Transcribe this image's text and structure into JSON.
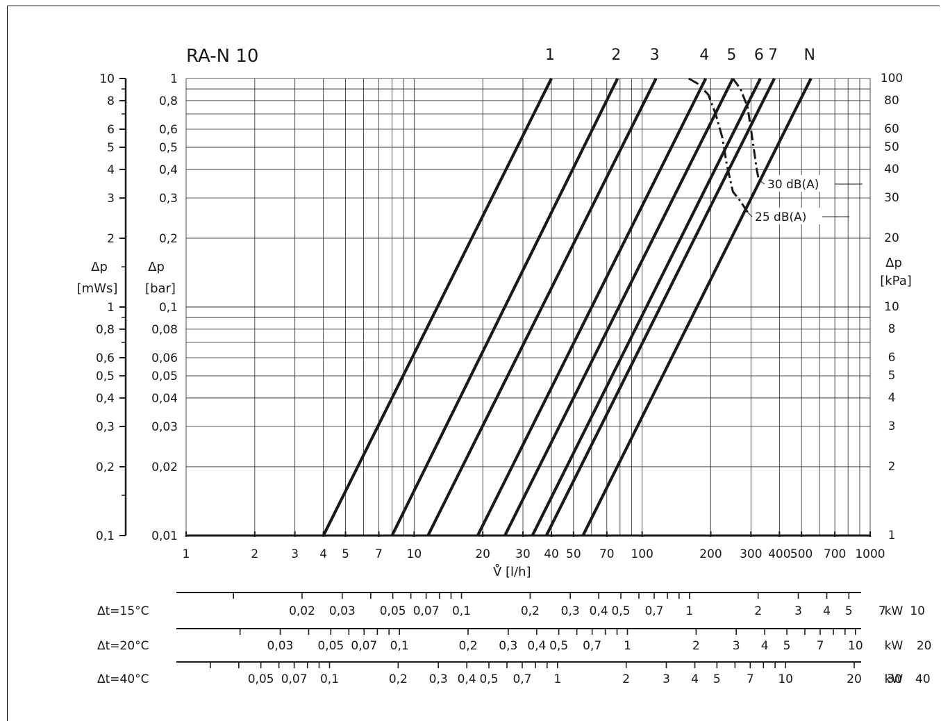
{
  "chart_data": {
    "type": "line",
    "title": "RA-N 10",
    "x_scale": "log",
    "y_scale": "log",
    "xlim": [
      1,
      1000
    ],
    "ylim": [
      0.01,
      1
    ],
    "xlabel": "V̊  [l/h]",
    "x_ticks": [
      1,
      2,
      3,
      4,
      5,
      7,
      10,
      20,
      30,
      40,
      50,
      70,
      100,
      200,
      300,
      400,
      500,
      700,
      1000
    ],
    "x_tick_labels": [
      "1",
      "2",
      "3",
      "4",
      "5",
      "7",
      "10",
      "20",
      "30",
      "40",
      "50",
      "70",
      "100",
      "200",
      "300",
      "400",
      "500",
      "700",
      "1000"
    ],
    "y_axes": {
      "mws": {
        "label_top": "Δp",
        "label_bottom": "[mWs]",
        "ticks": [
          10,
          8,
          6,
          5,
          4,
          3,
          2,
          1,
          0.8,
          0.6,
          0.5,
          0.4,
          0.3,
          0.2,
          0.1
        ],
        "tick_labels": [
          "10",
          "8",
          "6",
          "5",
          "4",
          "3",
          "2",
          "1",
          "0,8",
          "0,6",
          "0,5",
          "0,4",
          "0,3",
          "0,2",
          "0,1"
        ]
      },
      "bar": {
        "label_top": "Δp",
        "label_bottom": "[bar]",
        "ticks": [
          1,
          0.8,
          0.6,
          0.5,
          0.4,
          0.3,
          0.2,
          0.1,
          0.08,
          0.06,
          0.05,
          0.04,
          0.03,
          0.02,
          0.01
        ],
        "tick_labels": [
          "1",
          "0,8",
          "0,6",
          "0,5",
          "0,4",
          "0,3",
          "0,2",
          "0,1",
          "0,08",
          "0,06",
          "0,05",
          "0,04",
          "0,03",
          "0,02",
          "0,01"
        ]
      },
      "kpa": {
        "label_top": "Δp",
        "label_bottom": "[kPa]",
        "ticks": [
          100,
          80,
          60,
          50,
          40,
          30,
          20,
          10,
          8,
          6,
          5,
          4,
          3,
          2,
          1
        ],
        "tick_labels": [
          "100",
          "80",
          "60",
          "50",
          "40",
          "30",
          "20",
          "10",
          "8",
          "6",
          "5",
          "4",
          "3",
          "2",
          "1"
        ]
      }
    },
    "series": [
      {
        "name": "1",
        "x": [
          4,
          40
        ],
        "y": [
          0.01,
          1
        ]
      },
      {
        "name": "2",
        "x": [
          8,
          78
        ],
        "y": [
          0.01,
          1
        ]
      },
      {
        "name": "3",
        "x": [
          11.5,
          115
        ],
        "y": [
          0.01,
          1
        ]
      },
      {
        "name": "4",
        "x": [
          19,
          190
        ],
        "y": [
          0.01,
          1
        ]
      },
      {
        "name": "5",
        "x": [
          25,
          250
        ],
        "y": [
          0.01,
          1
        ]
      },
      {
        "name": "6",
        "x": [
          33,
          330
        ],
        "y": [
          0.01,
          1
        ]
      },
      {
        "name": "7",
        "x": [
          38,
          380
        ],
        "y": [
          0.01,
          1
        ]
      },
      {
        "name": "N",
        "x": [
          55,
          550
        ],
        "y": [
          0.01,
          1
        ]
      }
    ],
    "noise_curves": [
      {
        "label": "30  dB(A)",
        "x": [
          250,
          270,
          290,
          300,
          310,
          318,
          325
        ],
        "y": [
          1,
          0.9,
          0.75,
          0.6,
          0.48,
          0.4,
          0.36
        ]
      },
      {
        "label": "25  dB(A)",
        "x": [
          160,
          175,
          195,
          210,
          225,
          235,
          250,
          270,
          290
        ],
        "y": [
          1,
          0.95,
          0.85,
          0.7,
          0.55,
          0.42,
          0.32,
          0.29,
          0.26
        ]
      }
    ],
    "power_scales": [
      {
        "label": "Δt=15°C",
        "unit": "kW",
        "ticks": [
          0.02,
          0.03,
          0.05,
          0.07,
          0.1,
          0.2,
          0.3,
          0.4,
          0.5,
          0.7,
          1,
          2,
          3,
          4,
          5,
          7,
          10
        ],
        "labels": [
          "0,02",
          "0,03",
          "0,05",
          "0,07",
          "0,1",
          "0,2",
          "0,3",
          "0,4",
          "0,5",
          "0,7",
          "1",
          "2",
          "3",
          "4",
          "5",
          "7",
          "10"
        ]
      },
      {
        "label": "Δt=20°C",
        "unit": "kW",
        "ticks": [
          0.03,
          0.05,
          0.07,
          0.1,
          0.2,
          0.3,
          0.4,
          0.5,
          0.7,
          1,
          2,
          3,
          4,
          5,
          7,
          10,
          20
        ],
        "labels": [
          "0,03",
          "0,05",
          "0,07",
          "0,1",
          "0,2",
          "0,3",
          "0,4",
          "0,5",
          "0,7",
          "1",
          "2",
          "3",
          "4",
          "5",
          "7",
          "10",
          "20"
        ]
      },
      {
        "label": "Δt=40°C",
        "unit": "kW",
        "ticks": [
          0.05,
          0.07,
          0.1,
          0.2,
          0.3,
          0.4,
          0.5,
          0.7,
          1,
          2,
          3,
          4,
          5,
          7,
          10,
          20,
          30,
          40
        ],
        "labels": [
          "0,05",
          "0,07",
          "0,1",
          "0,2",
          "0,3",
          "0,4",
          "0,5",
          "0,7",
          "1",
          "2",
          "3",
          "4",
          "5",
          "7",
          "10",
          "20",
          "30",
          "40"
        ]
      }
    ],
    "grid": true,
    "colors": {
      "line": "#1a1a1a",
      "grid": "#222222",
      "background": "#ffffff"
    }
  }
}
